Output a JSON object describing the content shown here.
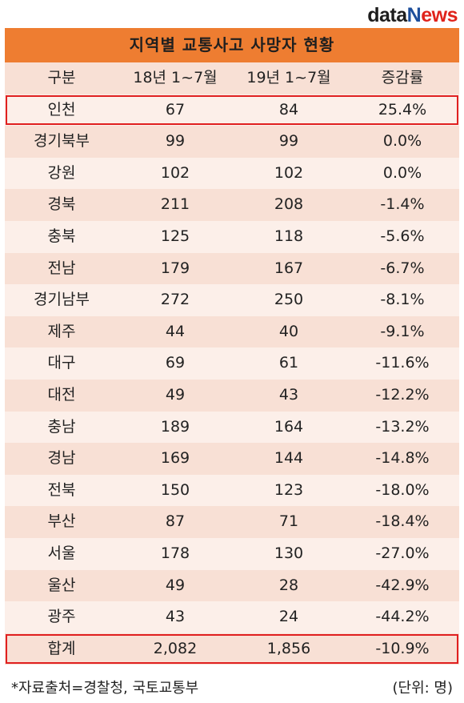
{
  "logo": {
    "part1": "d",
    "part2": "ata",
    "part3": "N",
    "part4": "ews"
  },
  "title": "지역별 교통사고 사망자 현황",
  "headers": [
    "구분",
    "18년 1~7월",
    "19년 1~7월",
    "증감률"
  ],
  "rows": [
    {
      "region": "인천",
      "y18": "67",
      "y19": "84",
      "rate": "25.4%",
      "highlight": true
    },
    {
      "region": "경기북부",
      "y18": "99",
      "y19": "99",
      "rate": "0.0%"
    },
    {
      "region": "강원",
      "y18": "102",
      "y19": "102",
      "rate": "0.0%"
    },
    {
      "region": "경북",
      "y18": "211",
      "y19": "208",
      "rate": "-1.4%"
    },
    {
      "region": "충북",
      "y18": "125",
      "y19": "118",
      "rate": "-5.6%"
    },
    {
      "region": "전남",
      "y18": "179",
      "y19": "167",
      "rate": "-6.7%"
    },
    {
      "region": "경기남부",
      "y18": "272",
      "y19": "250",
      "rate": "-8.1%"
    },
    {
      "region": "제주",
      "y18": "44",
      "y19": "40",
      "rate": "-9.1%"
    },
    {
      "region": "대구",
      "y18": "69",
      "y19": "61",
      "rate": "-11.6%"
    },
    {
      "region": "대전",
      "y18": "49",
      "y19": "43",
      "rate": "-12.2%"
    },
    {
      "region": "충남",
      "y18": "189",
      "y19": "164",
      "rate": "-13.2%"
    },
    {
      "region": "경남",
      "y18": "169",
      "y19": "144",
      "rate": "-14.8%"
    },
    {
      "region": "전북",
      "y18": "150",
      "y19": "123",
      "rate": "-18.0%"
    },
    {
      "region": "부산",
      "y18": "87",
      "y19": "71",
      "rate": "-18.4%"
    },
    {
      "region": "서울",
      "y18": "178",
      "y19": "130",
      "rate": "-27.0%"
    },
    {
      "region": "울산",
      "y18": "49",
      "y19": "28",
      "rate": "-42.9%"
    },
    {
      "region": "광주",
      "y18": "43",
      "y19": "24",
      "rate": "-44.2%"
    },
    {
      "region": "합계",
      "y18": "2,082",
      "y19": "1,856",
      "rate": "-10.9%",
      "highlight": true
    }
  ],
  "footer": {
    "source": "*자료출처=경찰청, 국토교통부",
    "unit": "(단위: 명)"
  },
  "colors": {
    "title_bg": "#ee7d31",
    "row_dark": "#f8e0d5",
    "row_light": "#fcefe9",
    "highlight_border": "#e02020"
  }
}
